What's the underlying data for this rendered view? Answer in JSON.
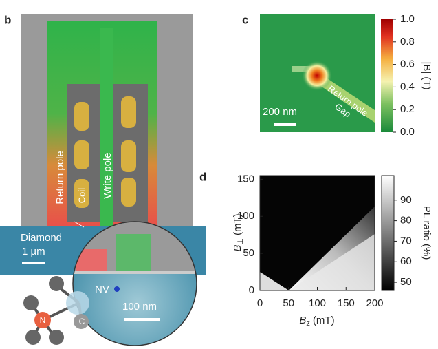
{
  "panel_b": {
    "label": "b",
    "return_pole": "Return pole",
    "coil": "Coil",
    "write_pole": "Write pole",
    "diamond": "Diamond",
    "scale_1": "1 µm",
    "nv": "NV",
    "scale_2": "100 nm",
    "atom_n": "N",
    "atom_c": "C"
  },
  "panel_c": {
    "label": "c",
    "scale": "200 nm",
    "return_pole": "Return pole",
    "gap": "Gap",
    "colorbar": {
      "label": "|B| (T)",
      "lim": [
        0,
        1
      ],
      "ticks": [
        {
          "value": 0,
          "label": "0.0"
        },
        0.2,
        0.4,
        0.6,
        0.8,
        {
          "value": 1,
          "label": "1.0"
        }
      ]
    }
  },
  "panel_d": {
    "label": "d",
    "xlabel": {
      "symbol": "B",
      "subscript": "z",
      "unit": "(mT)"
    },
    "ylabel": {
      "symbol": "B",
      "subscript": "⊥",
      "unit": "(mT)"
    },
    "xlim": [
      0,
      200
    ],
    "xticks": [
      0,
      50,
      100,
      150,
      200
    ],
    "ylim": [
      0,
      155
    ],
    "yticks": [
      0,
      50,
      100,
      150
    ],
    "colorbar": {
      "label": "PL ratio (%)",
      "lim": [
        46,
        102
      ],
      "ticks": [
        50,
        60,
        70,
        80,
        90
      ]
    }
  }
}
